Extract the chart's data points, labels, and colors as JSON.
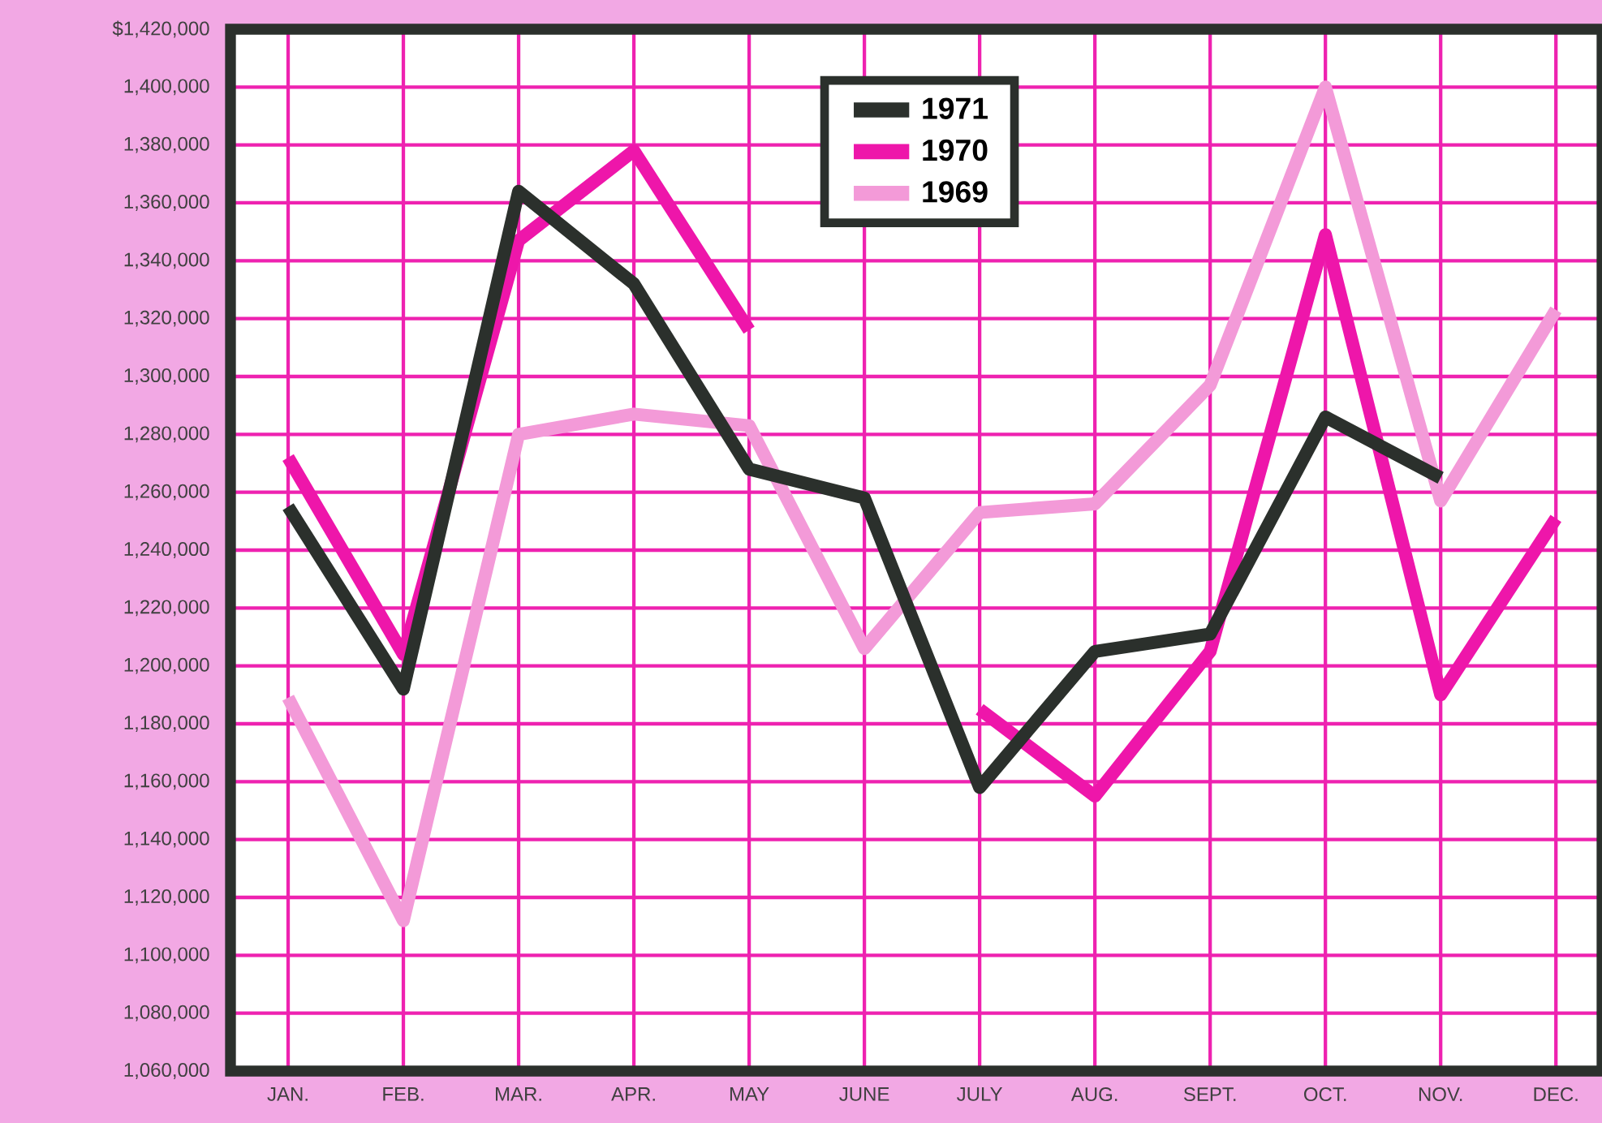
{
  "chart_data": {
    "type": "line",
    "categories": [
      "JAN.",
      "FEB.",
      "MAR.",
      "APR.",
      "MAY",
      "JUNE",
      "JULY",
      "AUG.",
      "SEPT.",
      "OCT.",
      "NOV.",
      "DEC."
    ],
    "ylim": [
      1060000,
      1420000
    ],
    "yticks": [
      {
        "value": 1060000,
        "label": "1,060,000"
      },
      {
        "value": 1080000,
        "label": "1,080,000"
      },
      {
        "value": 1100000,
        "label": "1,100,000"
      },
      {
        "value": 1120000,
        "label": "1,120,000"
      },
      {
        "value": 1140000,
        "label": "1,140,000"
      },
      {
        "value": 1160000,
        "label": "1,160,000"
      },
      {
        "value": 1180000,
        "label": "1,180,000"
      },
      {
        "value": 1200000,
        "label": "1,200,000"
      },
      {
        "value": 1220000,
        "label": "1,220,000"
      },
      {
        "value": 1240000,
        "label": "1,240,000"
      },
      {
        "value": 1260000,
        "label": "1,260,000"
      },
      {
        "value": 1280000,
        "label": "1,280,000"
      },
      {
        "value": 1300000,
        "label": "1,300,000"
      },
      {
        "value": 1320000,
        "label": "1,320,000"
      },
      {
        "value": 1340000,
        "label": "1,340,000"
      },
      {
        "value": 1360000,
        "label": "1,360,000"
      },
      {
        "value": 1380000,
        "label": "1,380,000"
      },
      {
        "value": 1400000,
        "label": "1,400,000"
      },
      {
        "value": 1420000,
        "label": "$1,420,000"
      }
    ],
    "grid": true,
    "legend": "top",
    "series": [
      {
        "name": "1971",
        "color": "#2b302c",
        "values": [
          1255000,
          1192000,
          1364000,
          1332000,
          1268000,
          1258000,
          1158000,
          1205000,
          1211000,
          1286000,
          1265000,
          null
        ]
      },
      {
        "name": "1970",
        "color": "#ee16aa",
        "values": [
          1272000,
          1204000,
          1347000,
          1378000,
          1316000,
          null,
          1185000,
          1155000,
          1205000,
          1349000,
          1190000,
          1251000
        ]
      },
      {
        "name": "1969",
        "color": "#f39ad8",
        "values": [
          1189000,
          1112000,
          1280000,
          1287000,
          1283000,
          1206000,
          1253000,
          1256000,
          1297000,
          1400000,
          1257000,
          1323000
        ]
      }
    ]
  }
}
